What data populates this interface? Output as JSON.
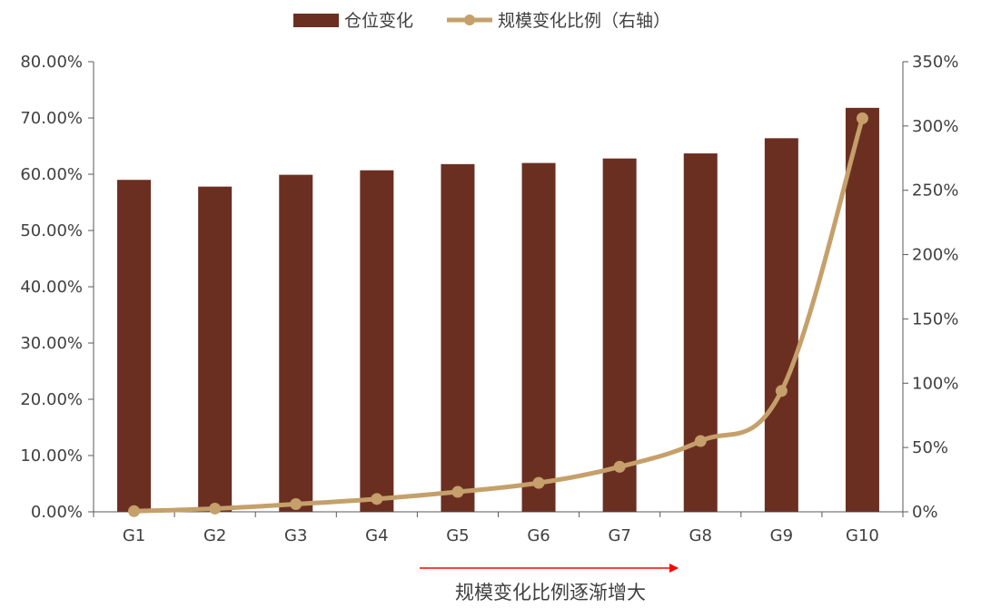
{
  "chart_data": {
    "type": "bar+line",
    "categories": [
      "G1",
      "G2",
      "G3",
      "G4",
      "G5",
      "G6",
      "G7",
      "G8",
      "G9",
      "G10"
    ],
    "series": [
      {
        "name": "仓位变化",
        "type": "bar",
        "axis": "left",
        "color": "#6b2f22",
        "values": [
          59.0,
          57.8,
          59.9,
          60.7,
          61.8,
          62.0,
          62.8,
          63.7,
          66.4,
          71.8
        ]
      },
      {
        "name": "规模变化比例（右轴）",
        "type": "line",
        "axis": "right",
        "color": "#c5a06a",
        "values": [
          0.5,
          2.5,
          6,
          10,
          15.5,
          22.5,
          35,
          55,
          94,
          306
        ]
      }
    ],
    "y_left": {
      "range": [
        0,
        80
      ],
      "ticks": [
        "0.00%",
        "10.00%",
        "20.00%",
        "30.00%",
        "40.00%",
        "50.00%",
        "60.00%",
        "70.00%",
        "80.00%"
      ]
    },
    "y_right": {
      "range": [
        0,
        350
      ],
      "ticks": [
        "0%",
        "50%",
        "100%",
        "150%",
        "200%",
        "250%",
        "300%",
        "350%"
      ]
    },
    "legend_position": "top-center",
    "grid": false,
    "annotation": {
      "text": "规模变化比例逐渐增大",
      "arrow_color": "#ff0000"
    }
  }
}
